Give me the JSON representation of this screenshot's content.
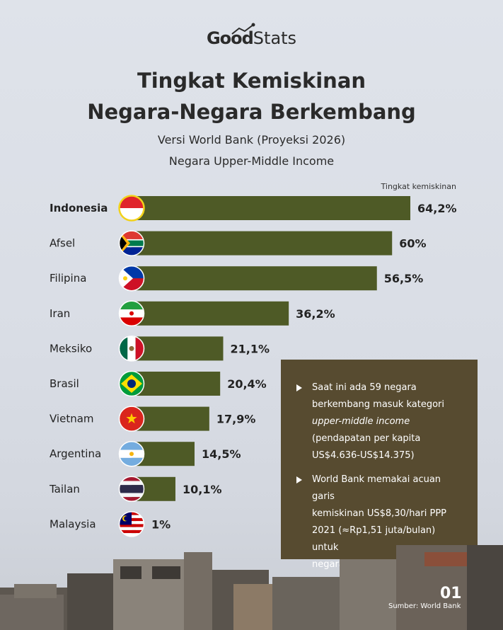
{
  "brand": {
    "logo_good": "Good",
    "logo_stats": "Stats"
  },
  "header": {
    "title_line1": "Tingkat Kemiskinan",
    "title_line2": "Negara-Negara Berkembang",
    "subtitle_line1": "Versi World Bank (Proyeksi 2026)",
    "subtitle_line2": "Negara Upper-Middle Income"
  },
  "chart_data": {
    "type": "bar",
    "orientation": "horizontal",
    "column_label": "Tingkat kemiskinan",
    "categories": [
      "Indonesia",
      "Afsel",
      "Filipina",
      "Iran",
      "Meksiko",
      "Brasil",
      "Vietnam",
      "Argentina",
      "Tailan",
      "Malaysia"
    ],
    "values": [
      64.2,
      60,
      56.5,
      36.2,
      21.1,
      20.4,
      17.9,
      14.5,
      10.1,
      1
    ],
    "value_labels": [
      "64,2%",
      "60%",
      "56,5%",
      "36,2%",
      "21,1%",
      "20,4%",
      "17,9%",
      "14,5%",
      "10,1%",
      "1%"
    ],
    "flags": [
      "indonesia-flag",
      "south-africa-flag",
      "philippines-flag",
      "iran-flag",
      "mexico-flag",
      "brazil-flag",
      "vietnam-flag",
      "argentina-flag",
      "thailand-flag",
      "malaysia-flag"
    ],
    "highlight": "Indonesia",
    "bar_color": "#4e5a26",
    "highlight_ring_color": "#f2d21a",
    "xlim": [
      0,
      64.2
    ],
    "grid": false,
    "legend": "none"
  },
  "info": {
    "item1_line1": "Saat ini ada 59 negara",
    "item1_line2": "berkembang masuk kategori",
    "item1_line3": "upper-middle income",
    "item1_line4": "(pendapatan per kapita",
    "item1_line5": "US$4.636-US$14.375)",
    "item2_line1": "World Bank memakai acuan garis",
    "item2_line2": "kemiskinan US$8,30/hari PPP",
    "item2_line3": "2021 (≈Rp1,51 juta/bulan) untuk",
    "item2_line4": "negara di kelompok ini",
    "box_color": "#574b30"
  },
  "footer": {
    "page_number": "01",
    "source": "Sumber: World Bank"
  }
}
